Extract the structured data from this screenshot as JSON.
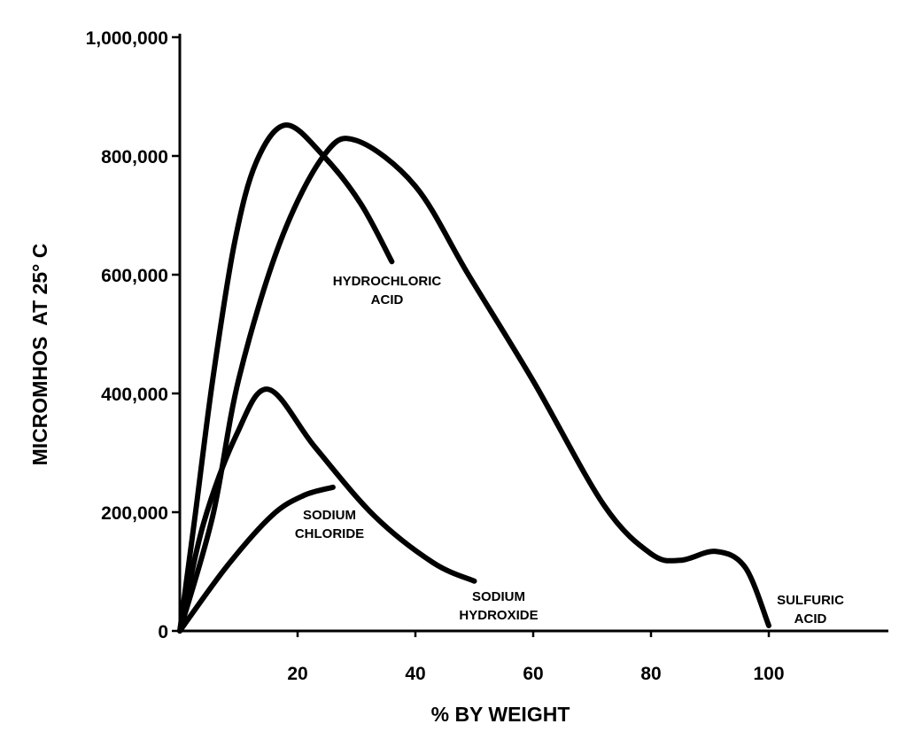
{
  "chart_data": {
    "type": "line",
    "title": "",
    "xlabel": "% BY WEIGHT",
    "ylabel": "MICROMHOS  AT 25° C",
    "xlim": [
      0,
      120
    ],
    "ylim": [
      0,
      1000000
    ],
    "xticks": [
      20,
      40,
      60,
      80,
      100
    ],
    "xtick_labels": [
      "20",
      "40",
      "60",
      "80",
      "100"
    ],
    "yticks": [
      0,
      200000,
      400000,
      600000,
      800000,
      1000000
    ],
    "ytick_labels": [
      "0",
      "200,000",
      "400,000",
      "600,000",
      "800,000",
      "1,000,000"
    ],
    "grid": false,
    "legend": "none (curves labeled directly)",
    "series": [
      {
        "name": "HYDROCHLORIC ACID",
        "label_lines": [
          "HYDROCHLORIC",
          "ACID"
        ],
        "x": [
          0,
          2.6,
          5.6,
          9.3,
          13,
          18,
          24.4,
          30.7,
          36
        ],
        "y": [
          0,
          194000,
          424000,
          654000,
          790000,
          852000,
          800000,
          720000,
          622000
        ]
      },
      {
        "name": "SULFURIC ACID",
        "label_lines": [
          "SULFURIC",
          "ACID"
        ],
        "x": [
          0,
          5.6,
          10,
          17,
          24.4,
          30,
          40,
          49,
          60,
          72,
          80,
          85,
          91,
          96,
          100
        ],
        "y": [
          0,
          194000,
          424000,
          654000,
          800000,
          826000,
          749000,
          600000,
          421000,
          212000,
          130000,
          119000,
          134000,
          107000,
          9000
        ]
      },
      {
        "name": "SODIUM HYDROXIDE",
        "label_lines": [
          "SODIUM",
          "HYDROXIDE"
        ],
        "x": [
          0,
          4,
          9.6,
          15,
          23,
          33,
          43,
          50
        ],
        "y": [
          0,
          180000,
          330000,
          407000,
          309000,
          194000,
          115000,
          84000
        ]
      },
      {
        "name": "SODIUM CHLORIDE",
        "label_lines": [
          "SODIUM",
          "CHLORIDE"
        ],
        "x": [
          0,
          8,
          15.6,
          21,
          26
        ],
        "y": [
          0,
          109000,
          194000,
          228000,
          242000
        ]
      }
    ],
    "line_color": "#000000",
    "background": "#ffffff"
  }
}
